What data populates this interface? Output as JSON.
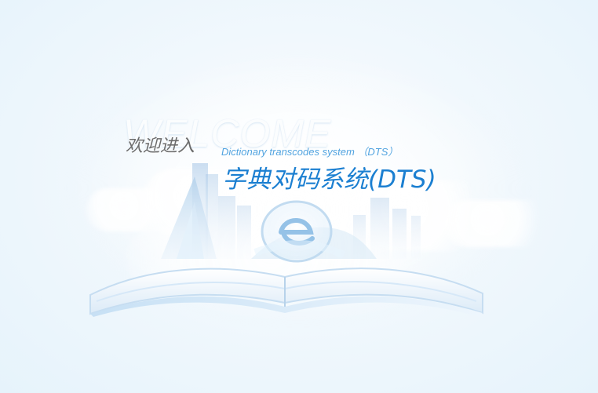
{
  "welcome": {
    "background_word": "WELCOME",
    "prefix": "欢迎进入",
    "subtitle": "Dictionary transcodes system （DTS）"
  },
  "app": {
    "title": "字典对码系统(DTS)"
  },
  "icons": {
    "illustration": "open-book-city-illustration-icon",
    "logo": "e-logo-icon",
    "clouds": "cloud-icon"
  },
  "colors": {
    "background": "#e6f3fb",
    "prefix_text": "#6c6c6c",
    "subtitle_text": "#4aa0df",
    "title_text": "#1b7fd1",
    "watermark_text": "#ffffff"
  }
}
